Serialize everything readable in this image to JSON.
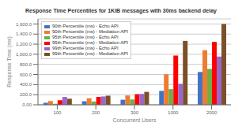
{
  "chart_data": {
    "type": "bar",
    "title": "Response Time Percentiles for 1KiB messages with 30ms backend delay",
    "xlabel": "Concurrent Users",
    "ylabel": "Response Time (ms)",
    "categories": [
      "100",
      "200",
      "300",
      "1000",
      "2000"
    ],
    "series": [
      {
        "name": "90th Percentile (ms) - Echo API",
        "color": "#4472c4",
        "values": [
          40,
          70,
          100,
          275,
          650
        ]
      },
      {
        "name": "90th Percentile (ms) - Mediation API",
        "color": "#ed7d31",
        "values": [
          75,
          130,
          185,
          605,
          1080
        ]
      },
      {
        "name": "95th Percentile (ms) - Echo API",
        "color": "#70ad47",
        "values": [
          20,
          65,
          105,
          310,
          710
        ]
      },
      {
        "name": "95th Percentile (ms) - Mediation API",
        "color": "#ff0000",
        "values": [
          90,
          155,
          210,
          975,
          1245
        ]
      },
      {
        "name": "99th Percentile (ms) - Echo API",
        "color": "#9966cc",
        "values": [
          155,
          165,
          215,
          415,
          955
        ]
      },
      {
        "name": "99th Percentile (ms) - Mediation API",
        "color": "#7b4f28",
        "values": [
          120,
          180,
          255,
          1265,
          1600
        ]
      }
    ],
    "ylim": [
      0,
      1700
    ],
    "yticks": [
      {
        "value": 0,
        "label": "0.00"
      },
      {
        "value": 200,
        "label": "200.0"
      },
      {
        "value": 400,
        "label": "400.0"
      },
      {
        "value": 600,
        "label": "600.0"
      },
      {
        "value": 800,
        "label": "800.0"
      },
      {
        "value": 1000,
        "label": "1,000.0"
      },
      {
        "value": 1200,
        "label": "1,200.0"
      },
      {
        "value": 1400,
        "label": "1,400.0"
      },
      {
        "value": 1600,
        "label": "1,600.0"
      }
    ],
    "grid": true,
    "legend": "upper left"
  }
}
